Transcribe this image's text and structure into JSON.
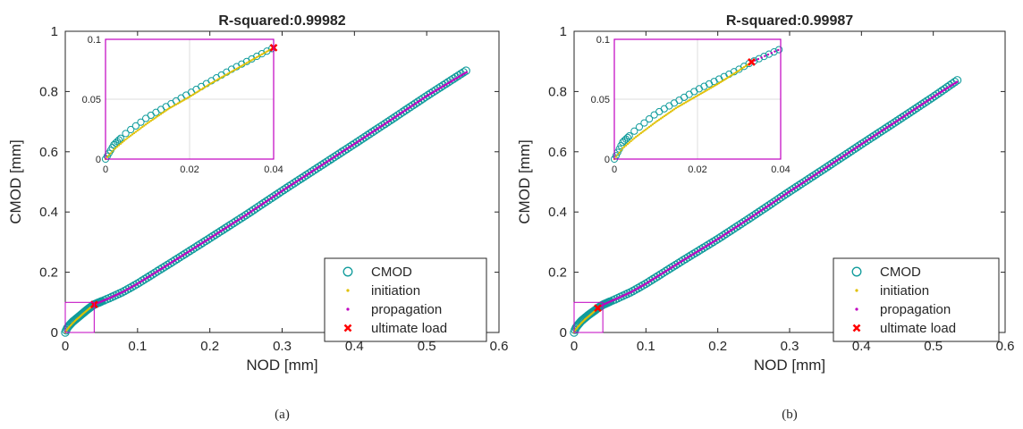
{
  "chart_data": [
    {
      "type": "scatter",
      "panel_label": "(a)",
      "title": "R-squared:0.99982",
      "xlabel": "NOD [mm]",
      "ylabel": "CMOD [mm]",
      "xlim": [
        0,
        0.6
      ],
      "ylim": [
        0,
        1
      ],
      "xticks": [
        "0",
        "0.1",
        "0.2",
        "0.3",
        "0.4",
        "0.5",
        "0.6"
      ],
      "yticks": [
        "0",
        "0.2",
        "0.4",
        "0.6",
        "0.8",
        "1"
      ],
      "grid": false,
      "legend_position": "bottom-right",
      "ultimate_load": {
        "x": 0.04,
        "y": 0.093
      },
      "series": [
        {
          "name": "CMOD",
          "marker": "open-circle",
          "color": "#0f9b9b",
          "x": [
            0.0,
            0.002,
            0.005,
            0.01,
            0.02,
            0.03,
            0.04,
            0.06,
            0.08,
            0.1,
            0.15,
            0.2,
            0.25,
            0.3,
            0.35,
            0.4,
            0.45,
            0.5,
            0.555
          ],
          "y": [
            0.0,
            0.012,
            0.022,
            0.035,
            0.055,
            0.075,
            0.093,
            0.113,
            0.135,
            0.162,
            0.237,
            0.313,
            0.39,
            0.47,
            0.548,
            0.626,
            0.705,
            0.785,
            0.87
          ]
        },
        {
          "name": "initiation",
          "marker": "dot",
          "color": "#e0c000",
          "x": [
            0.0,
            0.002,
            0.005,
            0.01,
            0.015,
            0.02,
            0.025,
            0.03,
            0.035,
            0.04
          ],
          "y": [
            0.0,
            0.008,
            0.017,
            0.03,
            0.042,
            0.052,
            0.063,
            0.073,
            0.083,
            0.093
          ]
        },
        {
          "name": "propagation",
          "marker": "dot",
          "color": "#c000c0",
          "x": [
            0.04,
            0.06,
            0.08,
            0.1,
            0.15,
            0.2,
            0.25,
            0.3,
            0.35,
            0.4,
            0.45,
            0.5,
            0.555
          ],
          "y": [
            0.093,
            0.113,
            0.135,
            0.162,
            0.237,
            0.313,
            0.39,
            0.47,
            0.548,
            0.626,
            0.705,
            0.785,
            0.864
          ]
        },
        {
          "name": "ultimate load",
          "marker": "x",
          "color": "#ff0000",
          "x": [
            0.04
          ],
          "y": [
            0.093
          ]
        }
      ],
      "inset": {
        "xlim": [
          0,
          0.04
        ],
        "ylim": [
          0,
          0.1
        ],
        "xticks": [
          "0",
          "0.02",
          "0.04"
        ],
        "yticks": [
          "0",
          "0.05",
          "0.1"
        ],
        "grid": true,
        "frame_color": "#c000c0"
      }
    },
    {
      "type": "scatter",
      "panel_label": "(b)",
      "title": "R-squared:0.99987",
      "xlabel": "NOD [mm]",
      "ylabel": "CMOD [mm]",
      "xlim": [
        0,
        0.6
      ],
      "ylim": [
        0,
        1
      ],
      "xticks": [
        "0",
        "0.1",
        "0.2",
        "0.3",
        "0.4",
        "0.5",
        "0.6"
      ],
      "yticks": [
        "0",
        "0.2",
        "0.4",
        "0.6",
        "0.8",
        "1"
      ],
      "grid": false,
      "legend_position": "bottom-right",
      "ultimate_load": {
        "x": 0.033,
        "y": 0.081
      },
      "series": [
        {
          "name": "CMOD",
          "marker": "open-circle",
          "color": "#0f9b9b",
          "x": [
            0.0,
            0.002,
            0.005,
            0.01,
            0.02,
            0.03,
            0.033,
            0.04,
            0.06,
            0.08,
            0.1,
            0.15,
            0.2,
            0.25,
            0.3,
            0.35,
            0.4,
            0.45,
            0.5,
            0.535
          ],
          "y": [
            0.0,
            0.014,
            0.024,
            0.038,
            0.058,
            0.075,
            0.081,
            0.092,
            0.113,
            0.135,
            0.162,
            0.237,
            0.31,
            0.388,
            0.468,
            0.546,
            0.625,
            0.703,
            0.782,
            0.84
          ]
        },
        {
          "name": "initiation",
          "marker": "dot",
          "color": "#e0c000",
          "x": [
            0.0,
            0.002,
            0.005,
            0.01,
            0.015,
            0.02,
            0.025,
            0.03,
            0.033
          ],
          "y": [
            0.0,
            0.009,
            0.018,
            0.031,
            0.043,
            0.053,
            0.063,
            0.074,
            0.081
          ]
        },
        {
          "name": "propagation",
          "marker": "dot",
          "color": "#c000c0",
          "x": [
            0.033,
            0.04,
            0.06,
            0.08,
            0.1,
            0.15,
            0.2,
            0.25,
            0.3,
            0.35,
            0.4,
            0.45,
            0.5,
            0.535
          ],
          "y": [
            0.081,
            0.092,
            0.113,
            0.135,
            0.162,
            0.237,
            0.31,
            0.388,
            0.468,
            0.546,
            0.625,
            0.703,
            0.782,
            0.835
          ]
        },
        {
          "name": "ultimate load",
          "marker": "x",
          "color": "#ff0000",
          "x": [
            0.033
          ],
          "y": [
            0.081
          ]
        }
      ],
      "inset": {
        "xlim": [
          0,
          0.04
        ],
        "ylim": [
          0,
          0.1
        ],
        "xticks": [
          "0",
          "0.02",
          "0.04"
        ],
        "yticks": [
          "0",
          "0.05",
          "0.1"
        ],
        "grid": true,
        "frame_color": "#c000c0"
      }
    }
  ]
}
